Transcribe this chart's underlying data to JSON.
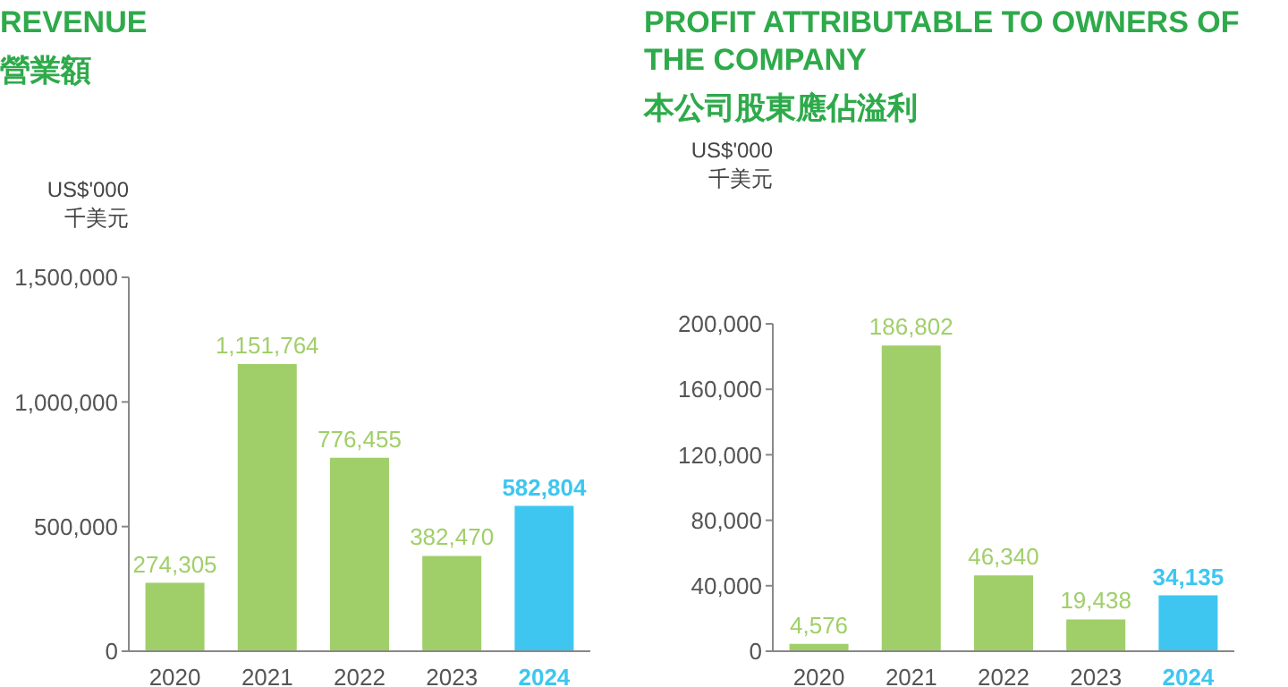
{
  "chart_data": [
    {
      "type": "bar",
      "title": "REVENUE",
      "subtitle": "營業額",
      "ylabel": "US$'000\n千美元",
      "categories": [
        "2020",
        "2021",
        "2022",
        "2023",
        "2024"
      ],
      "values": [
        274305,
        1151764,
        776455,
        382470,
        582804
      ],
      "colors": [
        "#a0cf6a",
        "#a0cf6a",
        "#a0cf6a",
        "#a0cf6a",
        "#3ec6f0"
      ],
      "ylim": [
        0,
        1500000
      ],
      "yticks": [
        {
          "value": 0,
          "label": "0"
        },
        {
          "value": 500000,
          "label": "500,000"
        },
        {
          "value": 1000000,
          "label": "1,000,000"
        },
        {
          "value": 1500000,
          "label": "1,500,000"
        }
      ],
      "value_labels": [
        "274,305",
        "1,151,764",
        "776,455",
        "382,470",
        "582,804"
      ]
    },
    {
      "type": "bar",
      "title": "PROFIT ATTRIBUTABLE TO OWNERS OF THE COMPANY",
      "subtitle": "本公司股東應佔溢利",
      "ylabel": "US$'000\n千美元",
      "categories": [
        "2020",
        "2021",
        "2022",
        "2023",
        "2024"
      ],
      "values": [
        4576,
        186802,
        46340,
        19438,
        34135
      ],
      "colors": [
        "#a0cf6a",
        "#a0cf6a",
        "#a0cf6a",
        "#a0cf6a",
        "#3ec6f0"
      ],
      "ylim": [
        0,
        200000
      ],
      "yticks": [
        {
          "value": 0,
          "label": "0"
        },
        {
          "value": 40000,
          "label": "40,000"
        },
        {
          "value": 80000,
          "label": "80,000"
        },
        {
          "value": 120000,
          "label": "120,000"
        },
        {
          "value": 160000,
          "label": "160,000"
        },
        {
          "value": 200000,
          "label": "200,000"
        }
      ],
      "value_labels": [
        "4,576",
        "186,802",
        "46,340",
        "19,438",
        "34,135"
      ]
    }
  ]
}
